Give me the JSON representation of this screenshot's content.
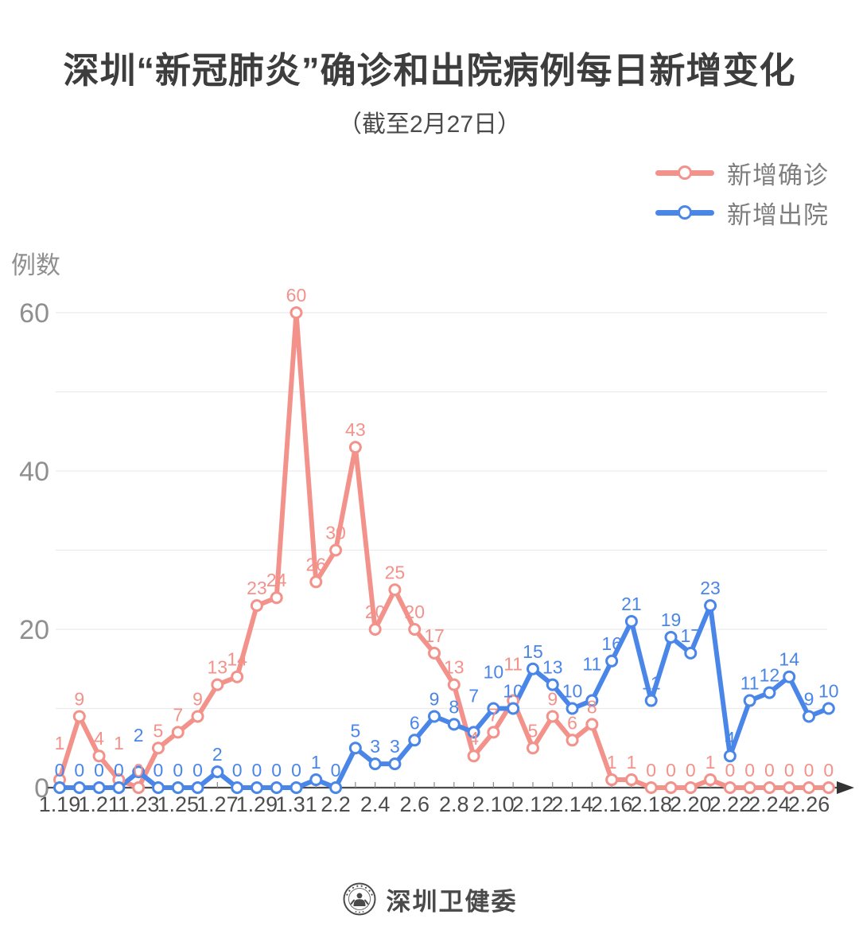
{
  "header": {
    "title": "深圳“新冠肺炎”确诊和出院病例每日新增变化",
    "subtitle": "（截至2月27日）"
  },
  "legend": {
    "confirmed_label": "新增确诊",
    "discharged_label": "新增出院"
  },
  "footer": {
    "brand": "深圳卫健委",
    "logo": "shenzhen-health-commission-seal"
  },
  "colors": {
    "confirmed": "#F3928B",
    "discharged": "#4A86E8",
    "grid": "#EBEBEB",
    "axis": "#4c4c4c",
    "tick": "#8a8a8a",
    "y_text": "#8f8f8f",
    "x_text": "#4d4d4d"
  },
  "chart_data": {
    "type": "line",
    "title": "深圳“新冠肺炎”确诊和出院病例每日新增变化（截至2月27日）",
    "xlabel": "",
    "ylabel": "例数",
    "x": [
      "1.19",
      "1.20",
      "1.21",
      "1.22",
      "1.23",
      "1.24",
      "1.25",
      "1.26",
      "1.27",
      "1.28",
      "1.29",
      "1.30",
      "1.31",
      "2.1",
      "2.2",
      "2.3",
      "2.4",
      "2.5",
      "2.6",
      "2.7",
      "2.8",
      "2.9",
      "2.10",
      "2.11",
      "2.12",
      "2.13",
      "2.14",
      "2.15",
      "2.16",
      "2.17",
      "2.18",
      "2.19",
      "2.20",
      "2.21",
      "2.22",
      "2.23",
      "2.24",
      "2.25",
      "2.26",
      "2.27"
    ],
    "x_tick_labels_every": 2,
    "series": [
      {
        "name": "新增确诊",
        "color": "#F3928B",
        "values": [
          1,
          9,
          4,
          1,
          0,
          5,
          7,
          9,
          13,
          14,
          23,
          24,
          60,
          26,
          30,
          43,
          20,
          25,
          20,
          17,
          13,
          4,
          7,
          11,
          5,
          9,
          6,
          8,
          1,
          1,
          0,
          0,
          0,
          1,
          0,
          0,
          0,
          0,
          0,
          0
        ]
      },
      {
        "name": "新增出院",
        "color": "#4A86E8",
        "values": [
          0,
          0,
          0,
          0,
          2,
          0,
          0,
          0,
          2,
          0,
          0,
          0,
          0,
          1,
          0,
          5,
          3,
          3,
          6,
          9,
          8,
          7,
          10,
          10,
          15,
          13,
          10,
          11,
          16,
          21,
          11,
          19,
          17,
          23,
          4,
          11,
          12,
          14,
          9,
          10
        ]
      }
    ],
    "yticks": [
      0,
      20,
      40,
      60
    ],
    "ylim": [
      0,
      62
    ],
    "grid": true,
    "grid_interval": 10,
    "legend_position": "top-right",
    "point_labels": true
  }
}
